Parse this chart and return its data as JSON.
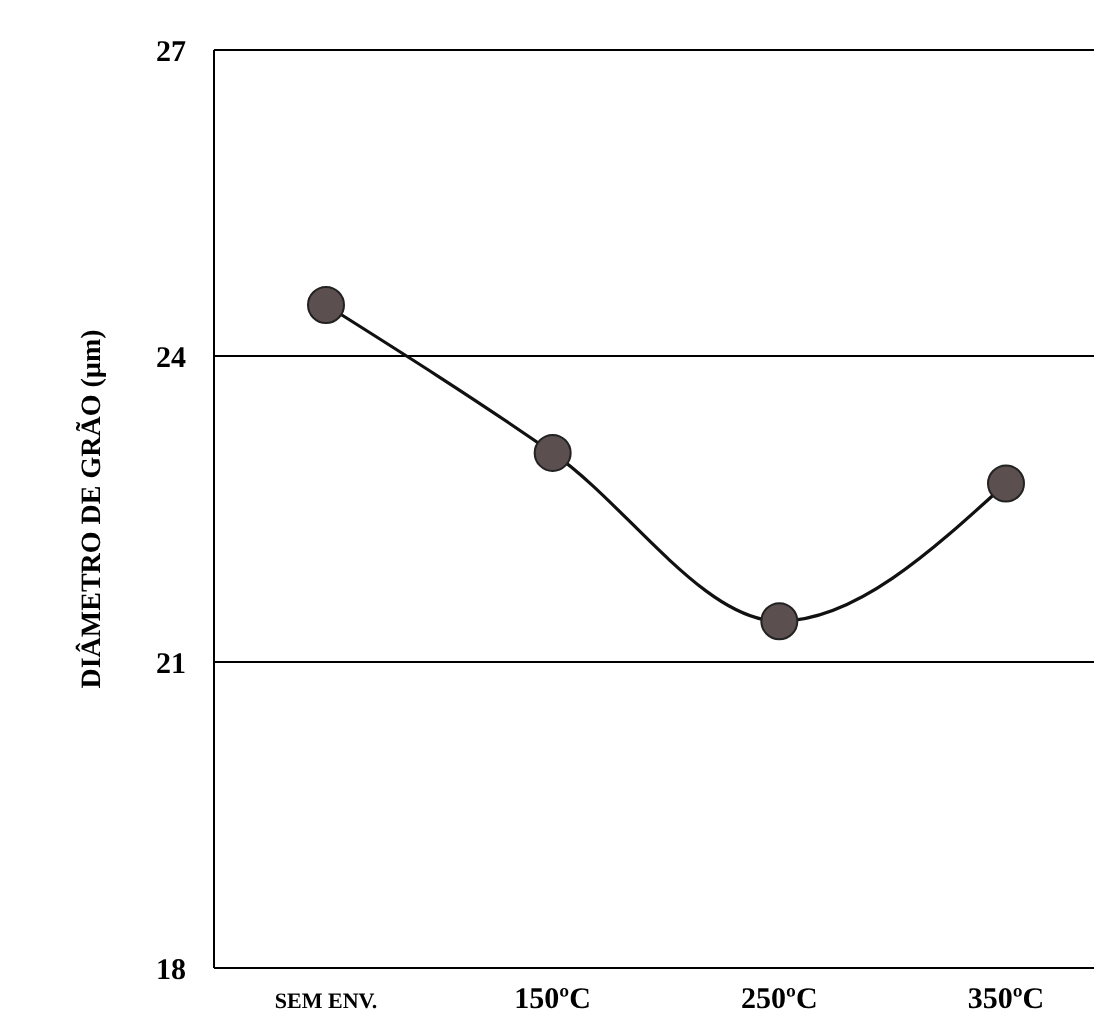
{
  "chart_data": {
    "type": "line",
    "ylabel": "DIÂMETRO DE GRÃO (µm)",
    "categories": [
      "SEM ENV.",
      "150ºC",
      "250ºC",
      "350ºC"
    ],
    "series": [
      {
        "color": "#5b4f4f",
        "values": [
          24.5,
          23.05,
          21.4,
          22.75
        ]
      }
    ],
    "ylim": [
      18,
      27
    ],
    "yticks": [
      18,
      21,
      24,
      27
    ],
    "grid": "y",
    "marker": "circle",
    "line_style": "solid"
  }
}
